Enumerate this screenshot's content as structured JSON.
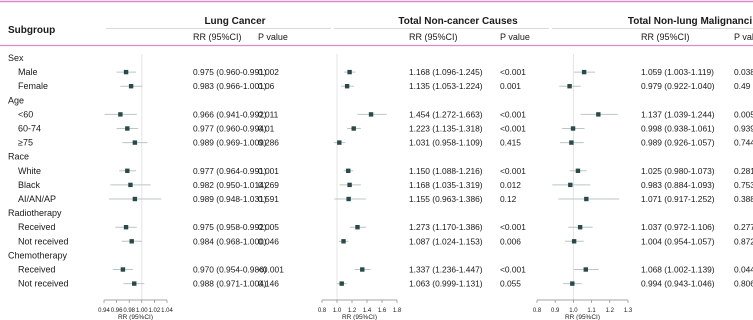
{
  "chart_data": {
    "type": "forest",
    "header_label": "Subgroup",
    "axis_label": "RR (95%CI)",
    "panels": [
      {
        "title": "Lung Cancer",
        "col_rr": "RR (95%CI)",
        "col_p": "P value",
        "xlim": [
          0.94,
          1.04
        ],
        "ticks": [
          "0.94",
          "0.96",
          "0.98",
          "1.00",
          "1.02",
          "1.04"
        ],
        "ref": 1.0
      },
      {
        "title": "Total Non-cancer Causes",
        "col_rr": "RR (95%CI)",
        "col_p": "P value",
        "xlim": [
          0.8,
          1.8
        ],
        "ticks": [
          "0.8",
          "1.0",
          "1.2",
          "1.4",
          "1.6",
          "1.8"
        ],
        "ref": 1.0
      },
      {
        "title": "Total Non-lung Malignanci",
        "col_rr": "RR (95%CI)",
        "col_p": "P value",
        "xlim": [
          0.8,
          1.3
        ],
        "ticks": [
          "0.8",
          "0.9",
          "1.0",
          "1.1",
          "1.2",
          "1.3"
        ],
        "ref": 1.0
      }
    ],
    "rows": [
      {
        "label": "Sex",
        "header": true
      },
      {
        "label": "Male",
        "values": [
          {
            "est": 0.975,
            "lo": 0.96,
            "hi": 0.991,
            "rr": "0.975 (0.960-0.991)",
            "p": "0.002"
          },
          {
            "est": 1.168,
            "lo": 1.096,
            "hi": 1.245,
            "rr": "1.168 (1.096-1.245)",
            "p": "<0.001"
          },
          {
            "est": 1.059,
            "lo": 1.003,
            "hi": 1.119,
            "rr": "1.059 (1.003-1.119)",
            "p": "0.038"
          }
        ]
      },
      {
        "label": "Female",
        "values": [
          {
            "est": 0.983,
            "lo": 0.966,
            "hi": 1.001,
            "rr": "0.983 (0.966-1.001)",
            "p": "0.06"
          },
          {
            "est": 1.135,
            "lo": 1.053,
            "hi": 1.224,
            "rr": "1.135 (1.053-1.224)",
            "p": "0.001"
          },
          {
            "est": 0.979,
            "lo": 0.922,
            "hi": 1.04,
            "rr": "0.979 (0.922-1.040)",
            "p": "0.49"
          }
        ]
      },
      {
        "label": "Age",
        "header": true
      },
      {
        "label": "<60",
        "values": [
          {
            "est": 0.966,
            "lo": 0.941,
            "hi": 0.992,
            "rr": "0.966 (0.941-0.992)",
            "p": "0.011"
          },
          {
            "est": 1.454,
            "lo": 1.272,
            "hi": 1.663,
            "rr": "1.454 (1.272-1.663)",
            "p": "<0.001"
          },
          {
            "est": 1.137,
            "lo": 1.039,
            "hi": 1.244,
            "rr": "1.137 (1.039-1.244)",
            "p": "0.005"
          }
        ]
      },
      {
        "label": "60-74",
        "values": [
          {
            "est": 0.977,
            "lo": 0.96,
            "hi": 0.994,
            "rr": "0.977 (0.960-0.994)",
            "p": "0.01"
          },
          {
            "est": 1.223,
            "lo": 1.135,
            "hi": 1.318,
            "rr": "1.223 (1.135-1.318)",
            "p": "<0.001"
          },
          {
            "est": 0.998,
            "lo": 0.938,
            "hi": 1.061,
            "rr": "0.998 (0.938-1.061)",
            "p": "0.939"
          }
        ]
      },
      {
        "label": "≥75",
        "values": [
          {
            "est": 0.989,
            "lo": 0.969,
            "hi": 1.009,
            "rr": "0.989 (0.969-1.009)",
            "p": "0.286"
          },
          {
            "est": 1.031,
            "lo": 0.958,
            "hi": 1.109,
            "rr": "1.031 (0.958-1.109)",
            "p": "0.415"
          },
          {
            "est": 0.989,
            "lo": 0.926,
            "hi": 1.057,
            "rr": "0.989 (0.926-1.057)",
            "p": "0.744"
          }
        ]
      },
      {
        "label": "Race",
        "header": true
      },
      {
        "label": "White",
        "values": [
          {
            "est": 0.977,
            "lo": 0.964,
            "hi": 0.991,
            "rr": "0.977 (0.964-0.991)",
            "p": "0.001"
          },
          {
            "est": 1.15,
            "lo": 1.088,
            "hi": 1.216,
            "rr": "1.150 (1.088-1.216)",
            "p": "<0.001"
          },
          {
            "est": 1.025,
            "lo": 0.98,
            "hi": 1.073,
            "rr": "1.025 (0.980-1.073)",
            "p": "0.281"
          }
        ]
      },
      {
        "label": "Black",
        "values": [
          {
            "est": 0.982,
            "lo": 0.95,
            "hi": 1.014,
            "rr": "0.982 (0.950-1.014)",
            "p": "0.269"
          },
          {
            "est": 1.168,
            "lo": 1.035,
            "hi": 1.319,
            "rr": "1.168 (1.035-1.319)",
            "p": "0.012"
          },
          {
            "est": 0.983,
            "lo": 0.884,
            "hi": 1.093,
            "rr": "0.983 (0.884-1.093)",
            "p": "0.753"
          }
        ]
      },
      {
        "label": "AI/AN/AP",
        "values": [
          {
            "est": 0.989,
            "lo": 0.948,
            "hi": 1.031,
            "rr": "0.989 (0.948-1.031)",
            "p": "0.591"
          },
          {
            "est": 1.155,
            "lo": 0.963,
            "hi": 1.386,
            "rr": "1.155 (0.963-1.386)",
            "p": "0.12"
          },
          {
            "est": 1.071,
            "lo": 0.917,
            "hi": 1.252,
            "rr": "1.071 (0.917-1.252)",
            "p": "0.388"
          }
        ]
      },
      {
        "label": "Radiotherapy",
        "header": true
      },
      {
        "label": "Received",
        "values": [
          {
            "est": 0.975,
            "lo": 0.958,
            "hi": 0.992,
            "rr": "0.975 (0.958-0.992)",
            "p": "0.005"
          },
          {
            "est": 1.273,
            "lo": 1.17,
            "hi": 1.386,
            "rr": "1.273 (1.170-1.386)",
            "p": "<0.001"
          },
          {
            "est": 1.037,
            "lo": 0.972,
            "hi": 1.106,
            "rr": "1.037 (0.972-1.106)",
            "p": "0.277"
          }
        ]
      },
      {
        "label": "Not received",
        "values": [
          {
            "est": 0.984,
            "lo": 0.968,
            "hi": 1.0,
            "rr": "0.984 (0.968-1.000)",
            "p": "0.046"
          },
          {
            "est": 1.087,
            "lo": 1.024,
            "hi": 1.153,
            "rr": "1.087 (1.024-1.153)",
            "p": "0.006"
          },
          {
            "est": 1.004,
            "lo": 0.954,
            "hi": 1.057,
            "rr": "1.004 (0.954-1.057)",
            "p": "0.872"
          }
        ]
      },
      {
        "label": "Chemotherapy",
        "header": true
      },
      {
        "label": "Received",
        "values": [
          {
            "est": 0.97,
            "lo": 0.954,
            "hi": 0.986,
            "rr": "0.970 (0.954-0.986)",
            "p": "<0.001"
          },
          {
            "est": 1.337,
            "lo": 1.236,
            "hi": 1.447,
            "rr": "1.337 (1.236-1.447)",
            "p": "<0.001"
          },
          {
            "est": 1.068,
            "lo": 1.002,
            "hi": 1.139,
            "rr": "1.068 (1.002-1.139)",
            "p": "0.044"
          }
        ]
      },
      {
        "label": "Not received",
        "values": [
          {
            "est": 0.988,
            "lo": 0.971,
            "hi": 1.004,
            "rr": "0.988 (0.971-1.004)",
            "p": "0.146"
          },
          {
            "est": 1.063,
            "lo": 0.999,
            "hi": 1.131,
            "rr": "1.063 (0.999-1.131)",
            "p": "0.055"
          },
          {
            "est": 0.994,
            "lo": 0.943,
            "hi": 1.046,
            "rr": "0.994 (0.943-1.046)",
            "p": "0.806"
          }
        ]
      }
    ],
    "colors": {
      "accent_line": "#d98cc9",
      "marker": "#2a4a4a",
      "whisker": "#bcc4c4",
      "ref_line": "#e4e4e4",
      "text": "#1a1a1a"
    }
  }
}
